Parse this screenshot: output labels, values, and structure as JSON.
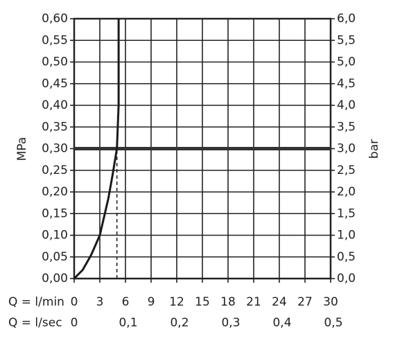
{
  "chart_data": {
    "type": "line",
    "x_label": "Q = l/min",
    "x2_label": "Q = l/sec",
    "y_label": "MPa",
    "y2_label": "bar",
    "x": [
      0,
      1,
      2,
      3,
      4,
      4.5,
      5,
      5.2,
      5.2
    ],
    "series": [
      {
        "color": "#1a1a1a",
        "values": [
          0,
          0.02,
          0.055,
          0.1,
          0.185,
          0.24,
          0.3,
          0.4,
          0.6
        ]
      }
    ],
    "xlim": [
      0,
      30
    ],
    "xticks": [
      0,
      3,
      6,
      9,
      12,
      15,
      18,
      21,
      24,
      27,
      30
    ],
    "x2lim": [
      0,
      0.5
    ],
    "x2ticks": [
      0,
      {
        "value": 0.1,
        "label": "0,1"
      },
      {
        "value": 0.2,
        "label": "0,2"
      },
      {
        "value": 0.3,
        "label": "0,3"
      },
      {
        "value": 0.4,
        "label": "0,4"
      },
      {
        "value": 0.5,
        "label": "0,5"
      }
    ],
    "ylim": [
      0,
      0.6
    ],
    "yticks": [
      {
        "value": 0,
        "label": "0,00"
      },
      {
        "value": 0.05,
        "label": "0,05"
      },
      {
        "value": 0.1,
        "label": "0,10"
      },
      {
        "value": 0.15,
        "label": "0,15"
      },
      {
        "value": 0.2,
        "label": "0,20"
      },
      {
        "value": 0.25,
        "label": "0,25"
      },
      {
        "value": 0.3,
        "label": "0,30"
      },
      {
        "value": 0.35,
        "label": "0,35"
      },
      {
        "value": 0.4,
        "label": "0,40"
      },
      {
        "value": 0.45,
        "label": "0,45"
      },
      {
        "value": 0.5,
        "label": "0,50"
      },
      {
        "value": 0.55,
        "label": "0,55"
      },
      {
        "value": 0.6,
        "label": "0,60"
      }
    ],
    "y2lim": [
      0,
      6
    ],
    "y2ticks": [
      {
        "value": 0,
        "label": "0,0"
      },
      {
        "value": 0.5,
        "label": "0,5"
      },
      {
        "value": 1,
        "label": "1,0"
      },
      {
        "value": 1.5,
        "label": "1,5"
      },
      {
        "value": 2,
        "label": "2,0"
      },
      {
        "value": 2.5,
        "label": "2,5"
      },
      {
        "value": 3,
        "label": "3,0"
      },
      {
        "value": 3.5,
        "label": "3,5"
      },
      {
        "value": 4,
        "label": "4,0"
      },
      {
        "value": 4.5,
        "label": "4,5"
      },
      {
        "value": 5,
        "label": "5,0"
      },
      {
        "value": 5.5,
        "label": "5,5"
      },
      {
        "value": 6,
        "label": "6,0"
      }
    ],
    "reference_y": 0.3,
    "reference_x": 5,
    "grid": true
  }
}
